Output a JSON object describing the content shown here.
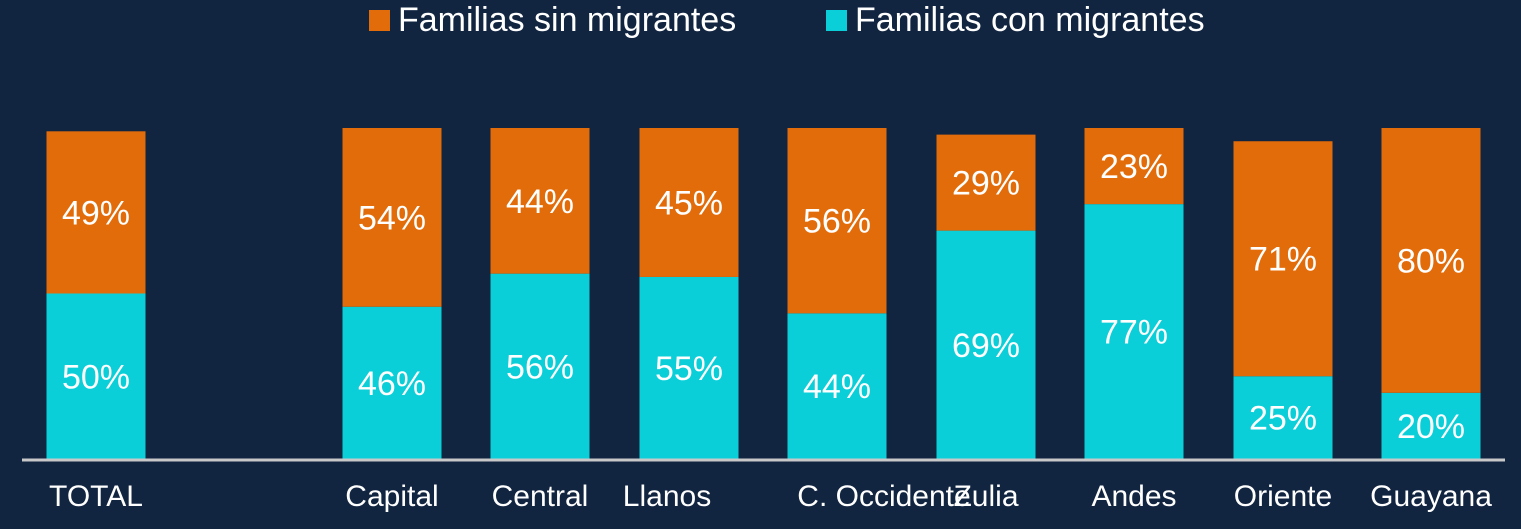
{
  "chart_data": {
    "type": "bar",
    "stacked": true,
    "title": "",
    "xlabel": "",
    "ylabel": "",
    "ylim": [
      0,
      100
    ],
    "grid": false,
    "legend_position": "top-center",
    "categories": [
      "TOTAL",
      "Capital",
      "Central",
      "Llanos",
      "C. Occidente",
      "Zulia",
      "Andes",
      "Oriente",
      "Guayana"
    ],
    "series": [
      {
        "name": "Familias con migrantes",
        "color": "#0bcfd8",
        "values": [
          50,
          46,
          56,
          55,
          44,
          69,
          77,
          25,
          20
        ],
        "labels": [
          "50%",
          "46%",
          "56%",
          "55%",
          "44%",
          "69%",
          "77%",
          "25%",
          "20%"
        ]
      },
      {
        "name": "Familias sin migrantes",
        "color": "#e36c0a",
        "values": [
          49,
          54,
          44,
          45,
          56,
          29,
          23,
          71,
          80
        ],
        "labels": [
          "49%",
          "54%",
          "44%",
          "45%",
          "56%",
          "29%",
          "23%",
          "71%",
          "80%"
        ]
      }
    ],
    "legend": [
      {
        "label": "Familias sin migrantes",
        "color": "#e36c0a"
      },
      {
        "label": "Familias con migrantes",
        "color": "#0bcfd8"
      }
    ],
    "background": "#112440",
    "axis_color": "#c8c8c8"
  }
}
